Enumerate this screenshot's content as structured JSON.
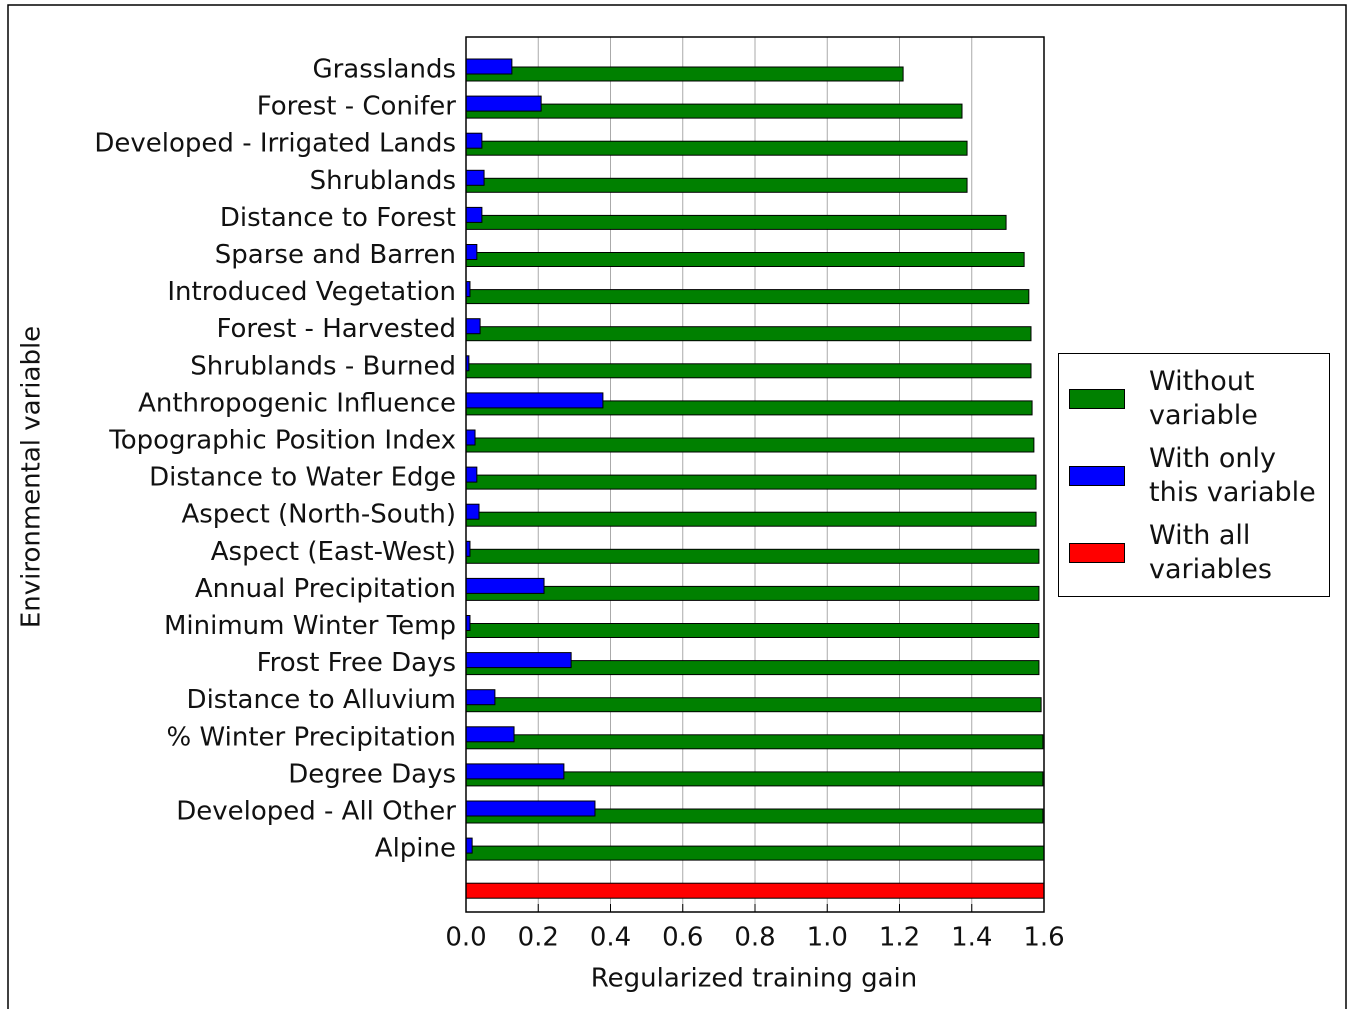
{
  "chart_data": {
    "type": "barh",
    "x_label": "Regularized training gain",
    "y_label": "Environmental variable",
    "categories": [
      "Grasslands",
      "Forest - Conifer",
      "Developed - Irrigated Lands",
      "Shrublands",
      "Distance to Forest",
      "Sparse and Barren",
      "Introduced Vegetation",
      "Forest - Harvested",
      "Shrublands - Burned",
      "Anthropogenic Influence",
      "Topographic Position Index",
      "Distance to Water Edge",
      "Aspect (North-South)",
      "Aspect (East-West)",
      "Annual Precipitation",
      "Minimum Winter Temp",
      "Frost Free Days",
      "Distance to Alluvium",
      "% Winter Precipitation",
      "Degree Days",
      "Developed - All Other",
      "Alpine",
      null
    ],
    "series": [
      {
        "name": "Without\nvariable",
        "color": "#008000",
        "values": [
          1.21,
          1.373,
          1.387,
          1.387,
          1.495,
          1.545,
          1.558,
          1.564,
          1.564,
          1.567,
          1.572,
          1.578,
          1.578,
          1.586,
          1.586,
          1.586,
          1.586,
          1.592,
          1.597,
          1.597,
          1.597,
          1.6,
          null
        ]
      },
      {
        "name": "With only\nthis variable",
        "color": "#0000ff",
        "values": [
          0.127,
          0.208,
          0.044,
          0.05,
          0.044,
          0.03,
          0.011,
          0.039,
          0.008,
          0.379,
          0.025,
          0.03,
          0.036,
          0.011,
          0.216,
          0.011,
          0.291,
          0.08,
          0.133,
          0.271,
          0.357,
          0.017,
          null
        ]
      },
      {
        "name": "With all\nvariables",
        "color": "#ff0000",
        "values": [
          null,
          null,
          null,
          null,
          null,
          null,
          null,
          null,
          null,
          null,
          null,
          null,
          null,
          null,
          null,
          null,
          null,
          null,
          null,
          null,
          null,
          null,
          1.6
        ]
      }
    ],
    "xlim": [
      0,
      1.6
    ],
    "xticks": [
      {
        "value": 0,
        "label": "0.0"
      },
      0.2,
      0.4,
      0.6,
      0.8,
      {
        "value": 1,
        "label": "1.0"
      },
      1.2,
      1.4,
      1.6
    ],
    "grid": true,
    "legend": "right"
  }
}
